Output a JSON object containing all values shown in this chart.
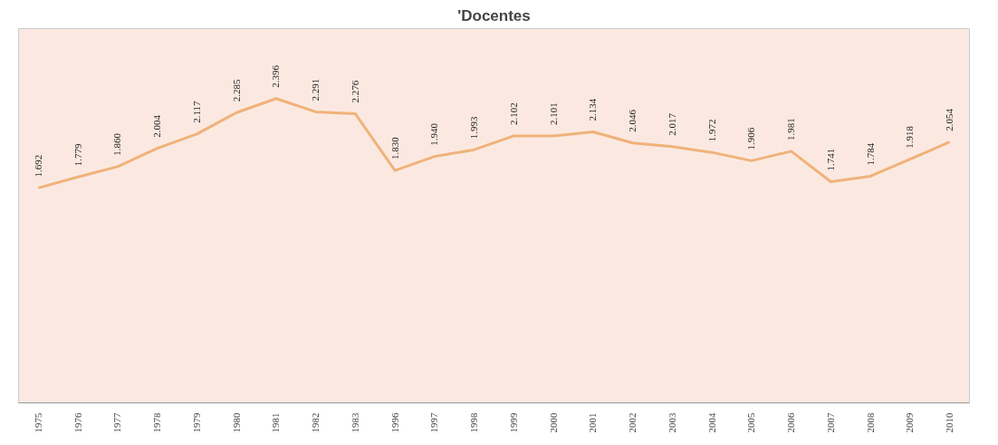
{
  "chart_data": {
    "type": "line",
    "title": "'Docentes",
    "categories": [
      "1975",
      "1976",
      "1977",
      "1978",
      "1979",
      "1980",
      "1981",
      "1982",
      "1983",
      "1996",
      "1997",
      "1998",
      "1999",
      "2000",
      "2001",
      "2002",
      "2003",
      "2004",
      "2005",
      "2006",
      "2007",
      "2008",
      "2009",
      "2010"
    ],
    "series": [
      {
        "color": "#f0b27a",
        "values": [
          1692,
          1779,
          1860,
          2004,
          2117,
          2285,
          2396,
          2291,
          2276,
          1830,
          1940,
          1993,
          2102,
          2101,
          2134,
          2046,
          2017,
          1972,
          1906,
          1981,
          1741,
          1784,
          1918,
          2054
        ],
        "value_labels": [
          "1.692",
          "1.779",
          "1.860",
          "2.004",
          "2.117",
          "2.285",
          "2.396",
          "2.291",
          "2.276",
          "1.830",
          "1.940",
          "1.993",
          "2.102",
          "2.101",
          "2.134",
          "2.046",
          "2.017",
          "1.972",
          "1.906",
          "1.981",
          "1.741",
          "1.784",
          "1.918",
          "2.054"
        ]
      }
    ],
    "grid": false,
    "marker": "none",
    "line_style": "solid"
  }
}
